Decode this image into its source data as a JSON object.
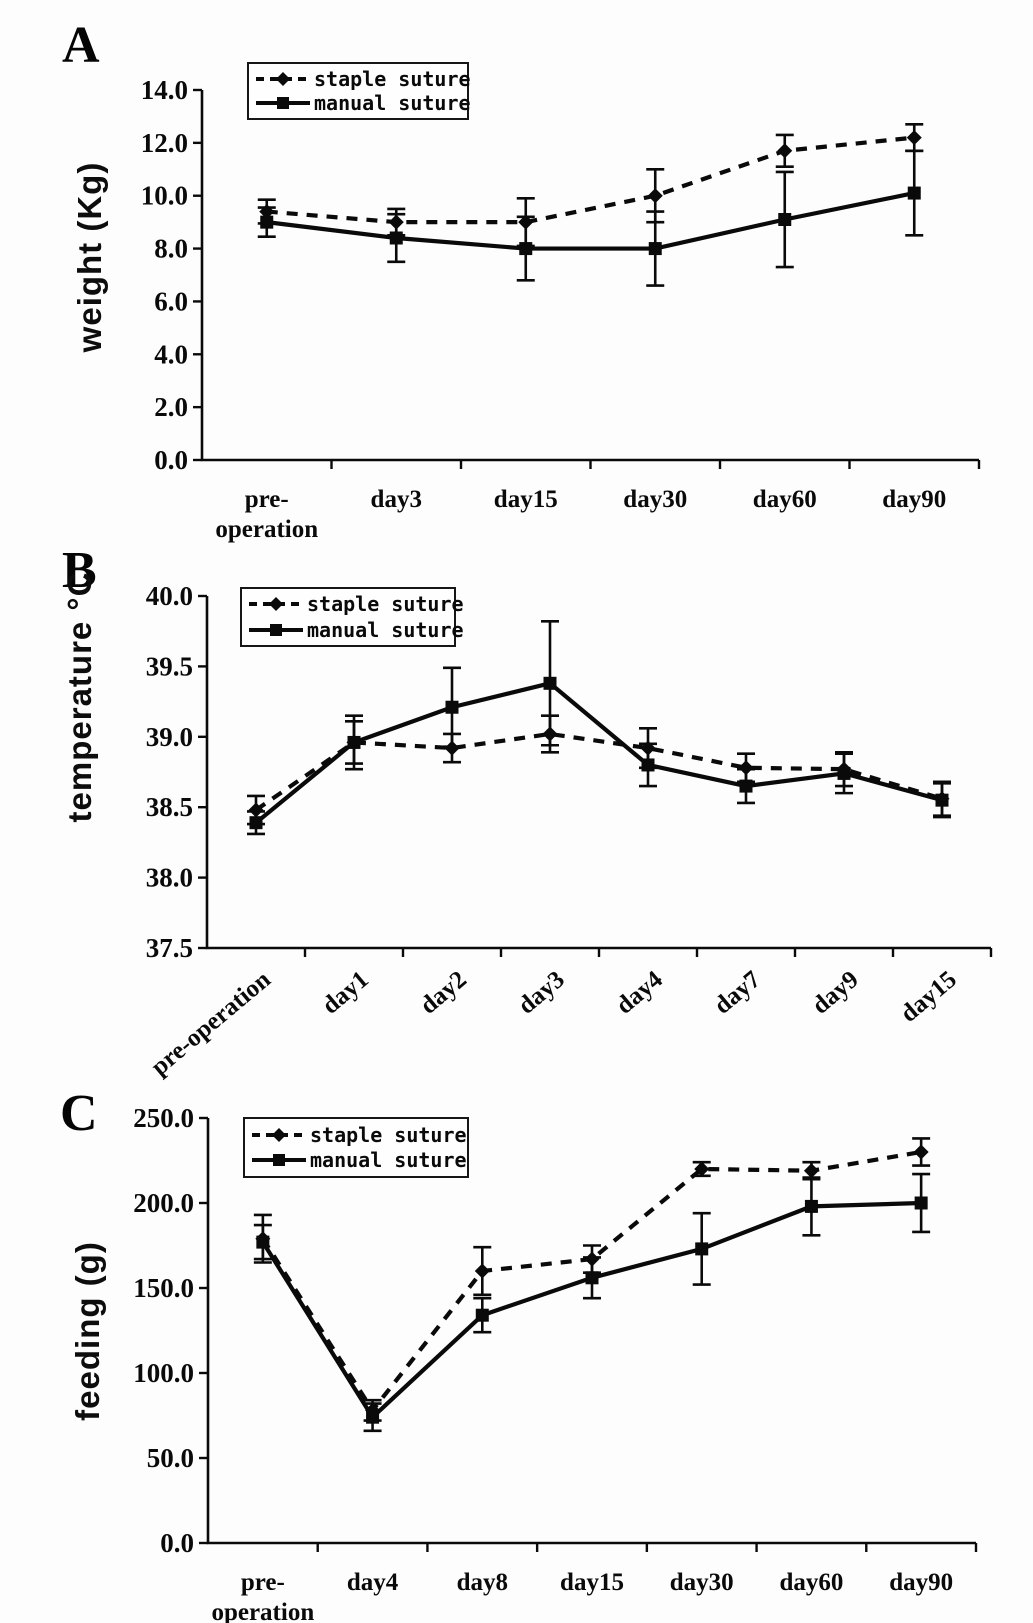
{
  "colors": {
    "line": "#0a0a0a",
    "background": "#fdfdfd"
  },
  "chart_data": [
    {
      "type": "line",
      "panel_label": "A",
      "title": "",
      "xlabel": "",
      "ylabel": "weight (Kg)",
      "categories": [
        "pre-operation",
        "day3",
        "day15",
        "day30",
        "day60",
        "day90"
      ],
      "ylim": [
        0,
        14
      ],
      "ytick_step": 2,
      "ytick_labels": [
        "0.0",
        "2.0",
        "4.0",
        "6.0",
        "8.0",
        "10.0",
        "12.0",
        "14.0"
      ],
      "grid": false,
      "legend_position": "top-left",
      "error_bars": true,
      "series": [
        {
          "name": "staple suture",
          "style": "dashed",
          "marker": "diamond",
          "values": [
            9.4,
            9.0,
            9.0,
            10.0,
            11.7,
            12.2
          ],
          "errors": [
            0.45,
            0.5,
            0.9,
            1.0,
            0.6,
            0.5
          ]
        },
        {
          "name": "manual suture",
          "style": "solid",
          "marker": "square",
          "values": [
            9.0,
            8.4,
            8.0,
            8.0,
            9.1,
            10.1
          ],
          "errors": [
            0.55,
            0.9,
            1.2,
            1.4,
            1.8,
            1.6
          ]
        }
      ]
    },
    {
      "type": "line",
      "panel_label": "B",
      "title": "",
      "xlabel": "",
      "ylabel": "temperature °C",
      "categories": [
        "pre-operation",
        "day1",
        "day2",
        "day3",
        "day4",
        "day7",
        "day9",
        "day15"
      ],
      "ylim": [
        37.5,
        40.0
      ],
      "ytick_step": 0.5,
      "ytick_labels": [
        "37.5",
        "38.0",
        "38.5",
        "39.0",
        "39.5",
        "40.0"
      ],
      "grid": false,
      "legend_position": "top-left",
      "error_bars": true,
      "x_labels_rotated": true,
      "series": [
        {
          "name": "staple suture",
          "style": "dashed",
          "marker": "diamond",
          "values": [
            38.48,
            38.96,
            38.92,
            39.02,
            38.92,
            38.78,
            38.77,
            38.56
          ],
          "errors": [
            0.1,
            0.15,
            0.1,
            0.13,
            0.14,
            0.1,
            0.12,
            0.12
          ]
        },
        {
          "name": "manual suture",
          "style": "solid",
          "marker": "square",
          "values": [
            38.39,
            38.96,
            39.21,
            39.38,
            38.8,
            38.65,
            38.74,
            38.55
          ],
          "errors": [
            0.08,
            0.19,
            0.28,
            0.44,
            0.15,
            0.12,
            0.14,
            0.12
          ]
        }
      ]
    },
    {
      "type": "line",
      "panel_label": "C",
      "title": "",
      "xlabel": "",
      "ylabel": "feeding (g)",
      "categories": [
        "pre-operation",
        "day4",
        "day8",
        "day15",
        "day30",
        "day60",
        "day90"
      ],
      "ylim": [
        0,
        250
      ],
      "ytick_step": 50,
      "ytick_labels": [
        "0.0",
        "50.0",
        "100.0",
        "150.0",
        "200.0",
        "250.0"
      ],
      "grid": false,
      "legend_position": "top-left",
      "error_bars": true,
      "series": [
        {
          "name": "staple suture",
          "style": "dashed",
          "marker": "diamond",
          "values": [
            179,
            78,
            160,
            167,
            220,
            219,
            230
          ],
          "errors": [
            14,
            6,
            14,
            8,
            4,
            5,
            8
          ]
        },
        {
          "name": "manual suture",
          "style": "solid",
          "marker": "square",
          "values": [
            177,
            74,
            134,
            156,
            173,
            198,
            200
          ],
          "errors": [
            10,
            8,
            10,
            12,
            21,
            17,
            17
          ]
        }
      ]
    }
  ]
}
